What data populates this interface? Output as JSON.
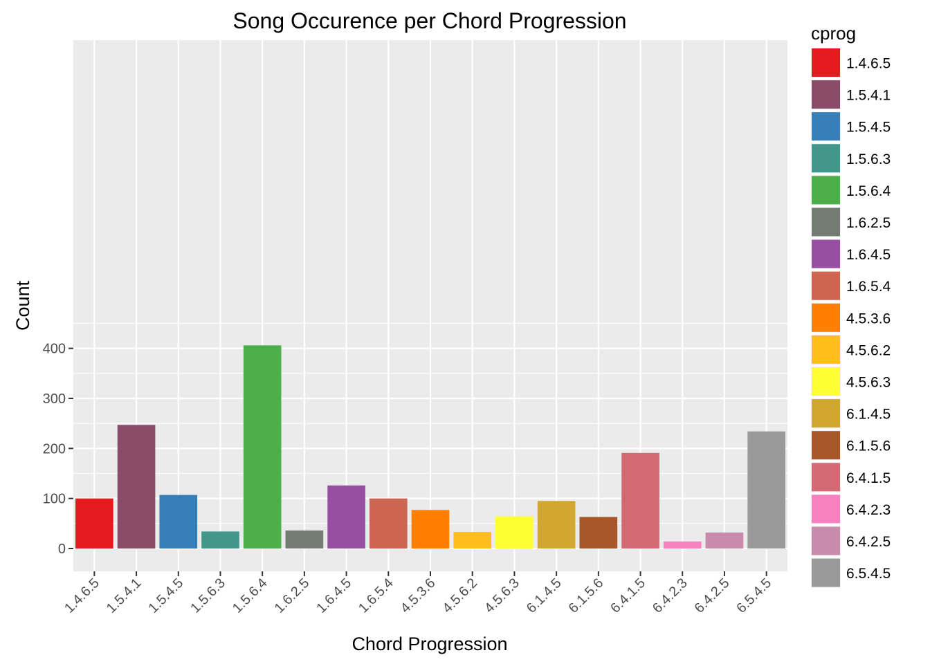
{
  "chart_data": {
    "type": "bar",
    "title": "Song Occurence per Chord Progression",
    "xlabel": "Chord Progression",
    "ylabel": "Count",
    "ylim": [
      0,
      435
    ],
    "yticks": [
      0,
      100,
      200,
      300,
      400
    ],
    "grid": true,
    "legend": {
      "title": "cprog",
      "position": "right"
    },
    "categories": [
      "1.4.6.5",
      "1.5.4.1",
      "1.5.4.5",
      "1.5.6.3",
      "1.5.6.4",
      "1.6.2.5",
      "1.6.4.5",
      "1.6.5.4",
      "4.5.3.6",
      "4.5.6.2",
      "4.5.6.3",
      "6.1.4.5",
      "6.1.5.6",
      "6.4.1.5",
      "6.4.2.3",
      "6.4.2.5",
      "6.5.4.5"
    ],
    "values": [
      100,
      247,
      107,
      34,
      406,
      36,
      126,
      100,
      77,
      33,
      64,
      95,
      63,
      191,
      14,
      32,
      234
    ],
    "colors": [
      "#e41a1c",
      "#8b4c6a",
      "#377eb8",
      "#43978a",
      "#4daf4a",
      "#737b73",
      "#984ea3",
      "#cd6650",
      "#ff7f00",
      "#ffbf1b",
      "#ffff33",
      "#d2a72f",
      "#a65628",
      "#d36a73",
      "#f781bf",
      "#c98bab",
      "#999999"
    ]
  }
}
